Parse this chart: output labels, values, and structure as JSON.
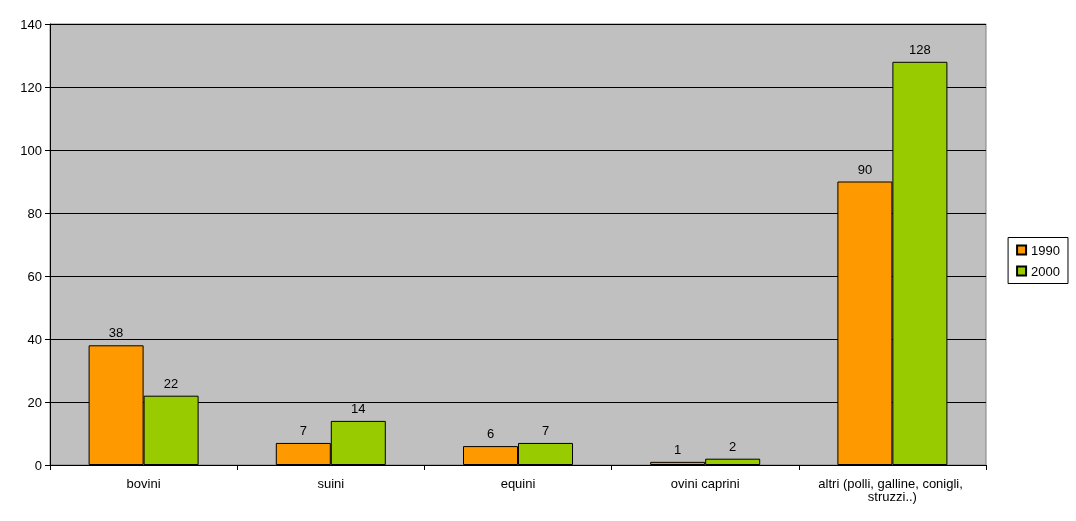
{
  "chart_data": {
    "type": "bar",
    "categories": [
      "bovini",
      "suini",
      "equini",
      "ovini caprini",
      "altri (polli, galline, conigli, struzzi..)"
    ],
    "series": [
      {
        "name": "1990",
        "color": "#ff9900",
        "values": [
          38,
          7,
          6,
          1,
          90
        ]
      },
      {
        "name": "2000",
        "color": "#99cc00",
        "values": [
          22,
          14,
          7,
          2,
          128
        ]
      }
    ],
    "ylim": [
      0,
      140
    ],
    "yticks": [
      0,
      20,
      40,
      60,
      80,
      100,
      120,
      140
    ],
    "grid": "y",
    "legend": "right",
    "data_labels": true
  }
}
